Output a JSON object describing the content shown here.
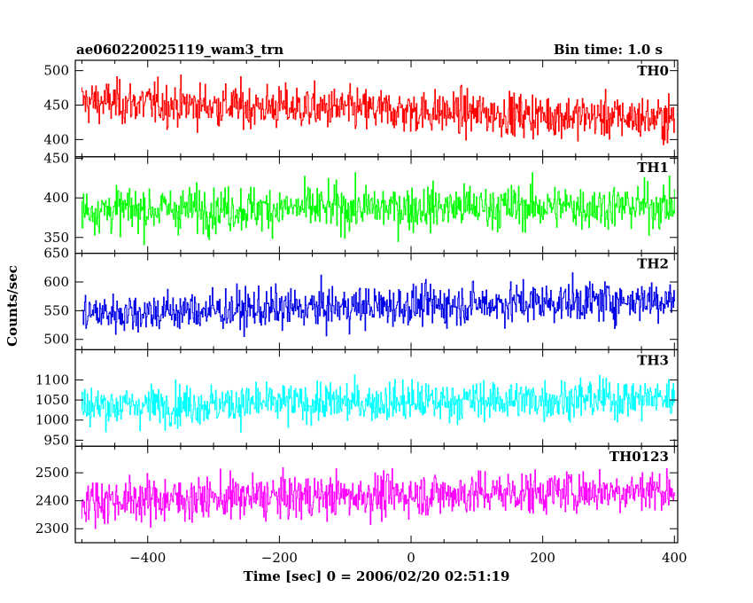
{
  "title_left": "ae060220025119_wam3_trn",
  "title_right": "Bin time: 1.0 s",
  "ylabel": "Counts/sec",
  "xlabel": "Time [sec] 0 = 2006/02/20 02:51:19",
  "chart_data": {
    "type": "line",
    "xlim": [
      -510,
      405
    ],
    "x_range": [
      -500,
      400
    ],
    "bin_time": 1.0,
    "x_ticks": [
      -400,
      -200,
      0,
      200,
      400
    ],
    "x_tick_labels": [
      "−400",
      "−200",
      "0",
      "200",
      "400"
    ],
    "panels": [
      {
        "name": "TH0",
        "color": "#ff0000",
        "ylim": [
          375,
          515
        ],
        "y_ticks": [
          400,
          450,
          500
        ],
        "y_tick_labels": [
          "400",
          "450",
          "500"
        ],
        "mean_start": 455,
        "mean_end": 430,
        "noise": 22
      },
      {
        "name": "TH1",
        "color": "#00ff00",
        "ylim": [
          330,
          452
        ],
        "y_ticks": [
          350,
          400,
          450
        ],
        "y_tick_labels": [
          "350",
          "400",
          "450"
        ],
        "mean_start": 385,
        "mean_end": 390,
        "noise": 20
      },
      {
        "name": "TH2",
        "color": "#0000e6",
        "ylim": [
          482,
          650
        ],
        "y_ticks": [
          500,
          550,
          600,
          650
        ],
        "y_tick_labels": [
          "500",
          "550",
          "600",
          "650"
        ],
        "mean_start": 545,
        "mean_end": 570,
        "noise": 25
      },
      {
        "name": "TH3",
        "color": "#00ffff",
        "ylim": [
          935,
          1175
        ],
        "y_ticks": [
          950,
          1000,
          1050,
          1100
        ],
        "y_tick_labels": [
          "950",
          "1000",
          "1050",
          "1100"
        ],
        "mean_start": 1035,
        "mean_end": 1055,
        "noise": 35
      },
      {
        "name": "TH0123",
        "color": "#ff00ff",
        "ylim": [
          2250,
          2595
        ],
        "y_ticks": [
          2300,
          2400,
          2500
        ],
        "y_tick_labels": [
          "2300",
          "2400",
          "2500"
        ],
        "mean_start": 2400,
        "mean_end": 2440,
        "noise": 55
      }
    ]
  }
}
